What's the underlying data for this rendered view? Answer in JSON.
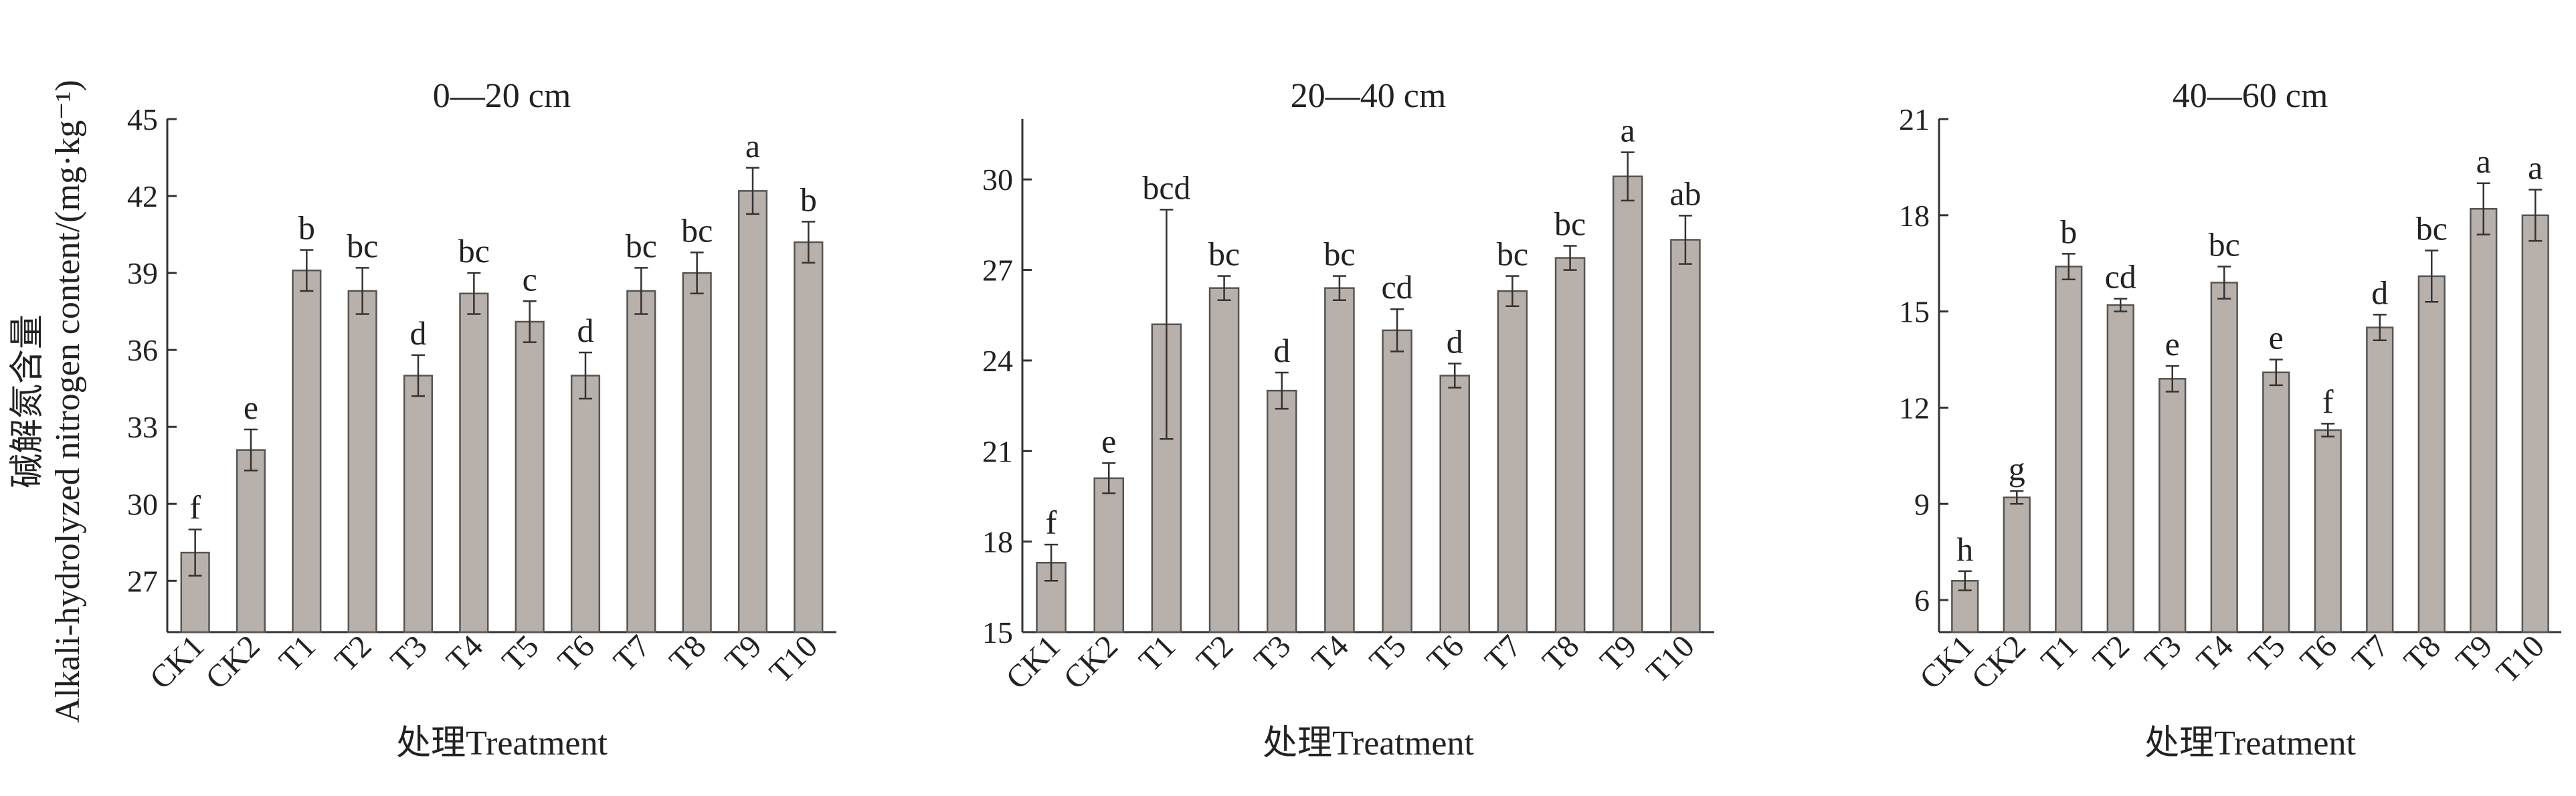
{
  "ylabel_cn": "碱解氮含量",
  "ylabel_en": "Alkali-hydrolyzed nitrogen content/(mg·kg⁻¹)",
  "xlabel": "处理Treatment",
  "colors": {
    "bar": "#b8b0ab",
    "axis": "#333333"
  },
  "chart_data": [
    {
      "type": "bar",
      "title": "0—20 cm",
      "xlabel": "处理Treatment",
      "categories": [
        "CK1",
        "CK2",
        "T1",
        "T2",
        "T3",
        "T4",
        "T5",
        "T6",
        "T7",
        "T8",
        "T9",
        "T10"
      ],
      "values": [
        28.1,
        32.1,
        39.1,
        38.3,
        35.0,
        38.2,
        37.1,
        35.0,
        38.3,
        39.0,
        42.2,
        40.2
      ],
      "errors": [
        0.9,
        0.8,
        0.8,
        0.9,
        0.8,
        0.8,
        0.8,
        0.9,
        0.9,
        0.8,
        0.9,
        0.8
      ],
      "letters": [
        "f",
        "e",
        "b",
        "bc",
        "d",
        "bc",
        "c",
        "d",
        "bc",
        "bc",
        "a",
        "b"
      ],
      "ylim": [
        25,
        45
      ],
      "yticks": [
        27,
        30,
        33,
        36,
        39,
        42,
        45
      ],
      "grid": false
    },
    {
      "type": "bar",
      "title": "20—40 cm",
      "xlabel": "处理Treatment",
      "categories": [
        "CK1",
        "CK2",
        "T1",
        "T2",
        "T3",
        "T4",
        "T5",
        "T6",
        "T7",
        "T8",
        "T9",
        "T10"
      ],
      "values": [
        17.3,
        20.1,
        25.2,
        26.4,
        23.0,
        26.4,
        25.0,
        23.5,
        26.3,
        27.4,
        30.1,
        28.0
      ],
      "errors": [
        0.6,
        0.5,
        3.8,
        0.4,
        0.6,
        0.4,
        0.7,
        0.4,
        0.5,
        0.4,
        0.8,
        0.8
      ],
      "letters": [
        "f",
        "e",
        "bcd",
        "bc",
        "d",
        "bc",
        "cd",
        "d",
        "bc",
        "bc",
        "a",
        "ab"
      ],
      "ylim": [
        15,
        32
      ],
      "yticks": [
        15,
        18,
        21,
        24,
        27,
        30
      ],
      "grid": false
    },
    {
      "type": "bar",
      "title": "40—60 cm",
      "xlabel": "处理Treatment",
      "categories": [
        "CK1",
        "CK2",
        "T1",
        "T2",
        "T3",
        "T4",
        "T5",
        "T6",
        "T7",
        "T8",
        "T9",
        "T10"
      ],
      "values": [
        6.6,
        9.2,
        16.4,
        15.2,
        12.9,
        15.9,
        13.1,
        11.3,
        14.5,
        16.1,
        18.2,
        18.0
      ],
      "errors": [
        0.3,
        0.2,
        0.4,
        0.2,
        0.4,
        0.5,
        0.4,
        0.2,
        0.4,
        0.8,
        0.8,
        0.8
      ],
      "letters": [
        "h",
        "g",
        "b",
        "cd",
        "e",
        "bc",
        "e",
        "f",
        "d",
        "bc",
        "a",
        "a"
      ],
      "ylim": [
        5,
        21
      ],
      "yticks": [
        6,
        9,
        12,
        15,
        18,
        21
      ],
      "grid": false
    }
  ]
}
